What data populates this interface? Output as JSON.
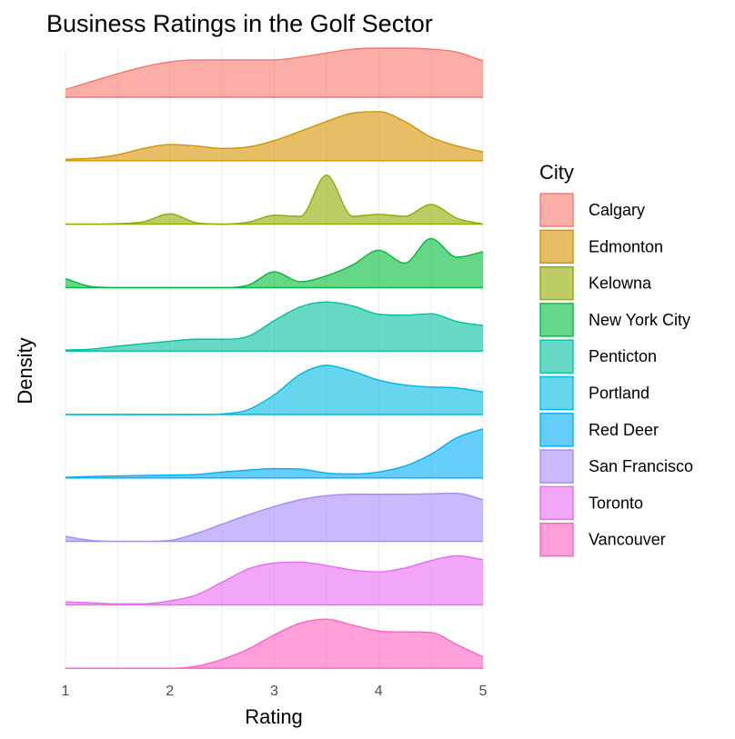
{
  "chart_data": {
    "type": "area",
    "subtype": "ridgeline-density",
    "title": "Business Ratings in the Golf Sector",
    "xlabel": "Rating",
    "ylabel": "Density",
    "xlim": [
      1,
      5
    ],
    "x_ticks": [
      "1",
      "2",
      "3",
      "4",
      "5"
    ],
    "grid": true,
    "legend": {
      "title": "City",
      "position": "right"
    },
    "x": [
      1.0,
      1.25,
      1.5,
      1.75,
      2.0,
      2.25,
      2.5,
      2.75,
      3.0,
      3.25,
      3.5,
      3.75,
      4.0,
      4.25,
      4.5,
      4.75,
      5.0
    ],
    "series": [
      {
        "name": "Calgary",
        "color": "#F8766D",
        "values": [
          0.16,
          0.32,
          0.48,
          0.62,
          0.72,
          0.76,
          0.76,
          0.76,
          0.76,
          0.82,
          0.9,
          0.98,
          1.0,
          1.0,
          0.98,
          0.92,
          0.74
        ]
      },
      {
        "name": "Edmonton",
        "color": "#D39200",
        "values": [
          0.03,
          0.05,
          0.12,
          0.25,
          0.33,
          0.3,
          0.25,
          0.28,
          0.41,
          0.6,
          0.8,
          0.97,
          1.0,
          0.8,
          0.48,
          0.3,
          0.18
        ]
      },
      {
        "name": "Kelowna",
        "color": "#93AA00",
        "values": [
          0.0,
          0.0,
          0.01,
          0.05,
          0.21,
          0.03,
          0.0,
          0.04,
          0.18,
          0.16,
          1.0,
          0.16,
          0.2,
          0.16,
          0.4,
          0.12,
          0.0
        ]
      },
      {
        "name": "New York City",
        "color": "#00BA38",
        "values": [
          0.18,
          0.02,
          0.0,
          0.0,
          0.0,
          0.0,
          0.0,
          0.05,
          0.32,
          0.12,
          0.24,
          0.46,
          0.76,
          0.5,
          1.0,
          0.62,
          0.73
        ]
      },
      {
        "name": "Penticton",
        "color": "#00C19F",
        "values": [
          0.02,
          0.04,
          0.1,
          0.15,
          0.2,
          0.24,
          0.24,
          0.3,
          0.62,
          0.9,
          1.0,
          0.92,
          0.75,
          0.73,
          0.76,
          0.6,
          0.52
        ]
      },
      {
        "name": "Portland",
        "color": "#00B9E3",
        "values": [
          0.0,
          0.0,
          0.0,
          0.0,
          0.0,
          0.0,
          0.01,
          0.1,
          0.4,
          0.82,
          1.0,
          0.88,
          0.7,
          0.6,
          0.56,
          0.54,
          0.46
        ]
      },
      {
        "name": "Red Deer",
        "color": "#00ADFA",
        "values": [
          0.01,
          0.03,
          0.04,
          0.05,
          0.06,
          0.07,
          0.12,
          0.16,
          0.19,
          0.18,
          0.1,
          0.08,
          0.12,
          0.24,
          0.48,
          0.82,
          1.0
        ]
      },
      {
        "name": "San Francisco",
        "color": "#A58AFF",
        "values": [
          0.1,
          0.02,
          0.0,
          0.0,
          0.02,
          0.16,
          0.35,
          0.54,
          0.71,
          0.85,
          0.93,
          0.96,
          0.96,
          0.96,
          0.97,
          0.98,
          0.85
        ]
      },
      {
        "name": "Toronto",
        "color": "#E76BF3",
        "values": [
          0.06,
          0.04,
          0.02,
          0.02,
          0.08,
          0.2,
          0.46,
          0.73,
          0.85,
          0.87,
          0.8,
          0.71,
          0.67,
          0.75,
          0.9,
          1.0,
          0.92
        ]
      },
      {
        "name": "Vancouver",
        "color": "#FF61C3",
        "values": [
          0.0,
          0.0,
          0.0,
          0.0,
          0.0,
          0.04,
          0.18,
          0.39,
          0.68,
          0.92,
          1.0,
          0.88,
          0.76,
          0.74,
          0.73,
          0.48,
          0.23
        ]
      }
    ]
  }
}
